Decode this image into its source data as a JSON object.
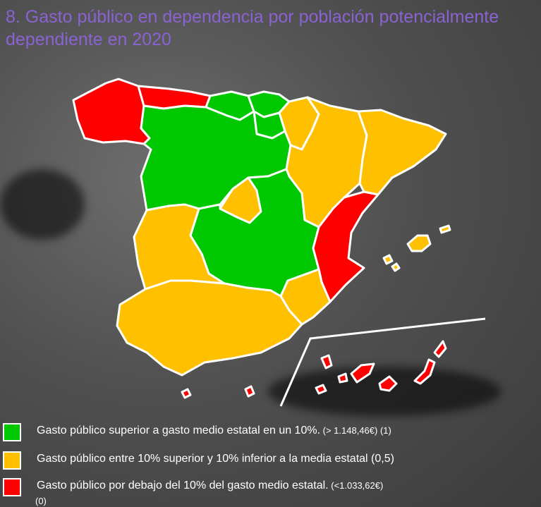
{
  "title": "8. Gasto público en dependencia por población potencialmente dependiente en 2020",
  "colors": {
    "green": "#00c800",
    "amber": "#ffc000",
    "red": "#ff0000",
    "title": "#8a63d2"
  },
  "legend": [
    {
      "color": "#00c800",
      "text": "Gasto público superior a gasto medio estatal en un 10%.",
      "note": " (> 1.148,46€) (1)"
    },
    {
      "color": "#ffc000",
      "text": "Gasto público entre 10% superior y 10% inferior a la media estatal  (0,5)",
      "note": ""
    },
    {
      "color": "#ff0000",
      "text": "Gasto público por debajo del 10% del gasto medio estatal.",
      "note": " (<1.033,62€)"
    }
  ],
  "legend_tail": "(0)"
}
